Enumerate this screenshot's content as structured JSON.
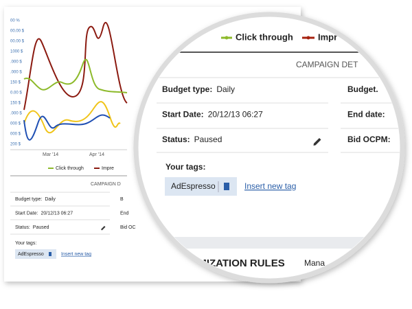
{
  "background_chart": {
    "y_labels": [
      "00 %",
      "00.00 $",
      "00.00 $",
      "1000 $",
      ".000 $",
      ".000 $",
      "150 $",
      "0.00 $",
      "150 $",
      ".000 $",
      "000 $",
      "000 $",
      "200 $"
    ],
    "x_labels": [
      "Mar '14",
      "Apr '14"
    ],
    "legend": [
      "Click through",
      "Impre"
    ]
  },
  "small_panel": {
    "header": "CAMPAIGN D",
    "rows": [
      {
        "label": "Budget type:",
        "value": "Daily",
        "right": "B"
      },
      {
        "label": "Start Date:",
        "value": "20/12/13 06:27",
        "right": "End"
      },
      {
        "label": "Status:",
        "value": "Paused",
        "right": "Bid OC"
      }
    ],
    "tags_label": "Your tags:",
    "tag": "AdEspresso",
    "insert": "Insert new tag"
  },
  "magnified": {
    "legend": [
      "Click through",
      "Impr"
    ],
    "header": "CAMPAIGN DET",
    "rows": [
      {
        "label": "Budget type:",
        "value": "Daily",
        "right": "Budget."
      },
      {
        "label": "Start Date:",
        "value": "20/12/13 06:27",
        "right": "End date:"
      },
      {
        "label": "Status:",
        "value": "Paused",
        "right": "Bid OCPM:"
      }
    ],
    "tags_label": "Your tags:",
    "tag": "AdEspresso",
    "insert": "Insert new tag",
    "section_title": "PTIMIZATION RULES",
    "section_link": "Mana"
  }
}
